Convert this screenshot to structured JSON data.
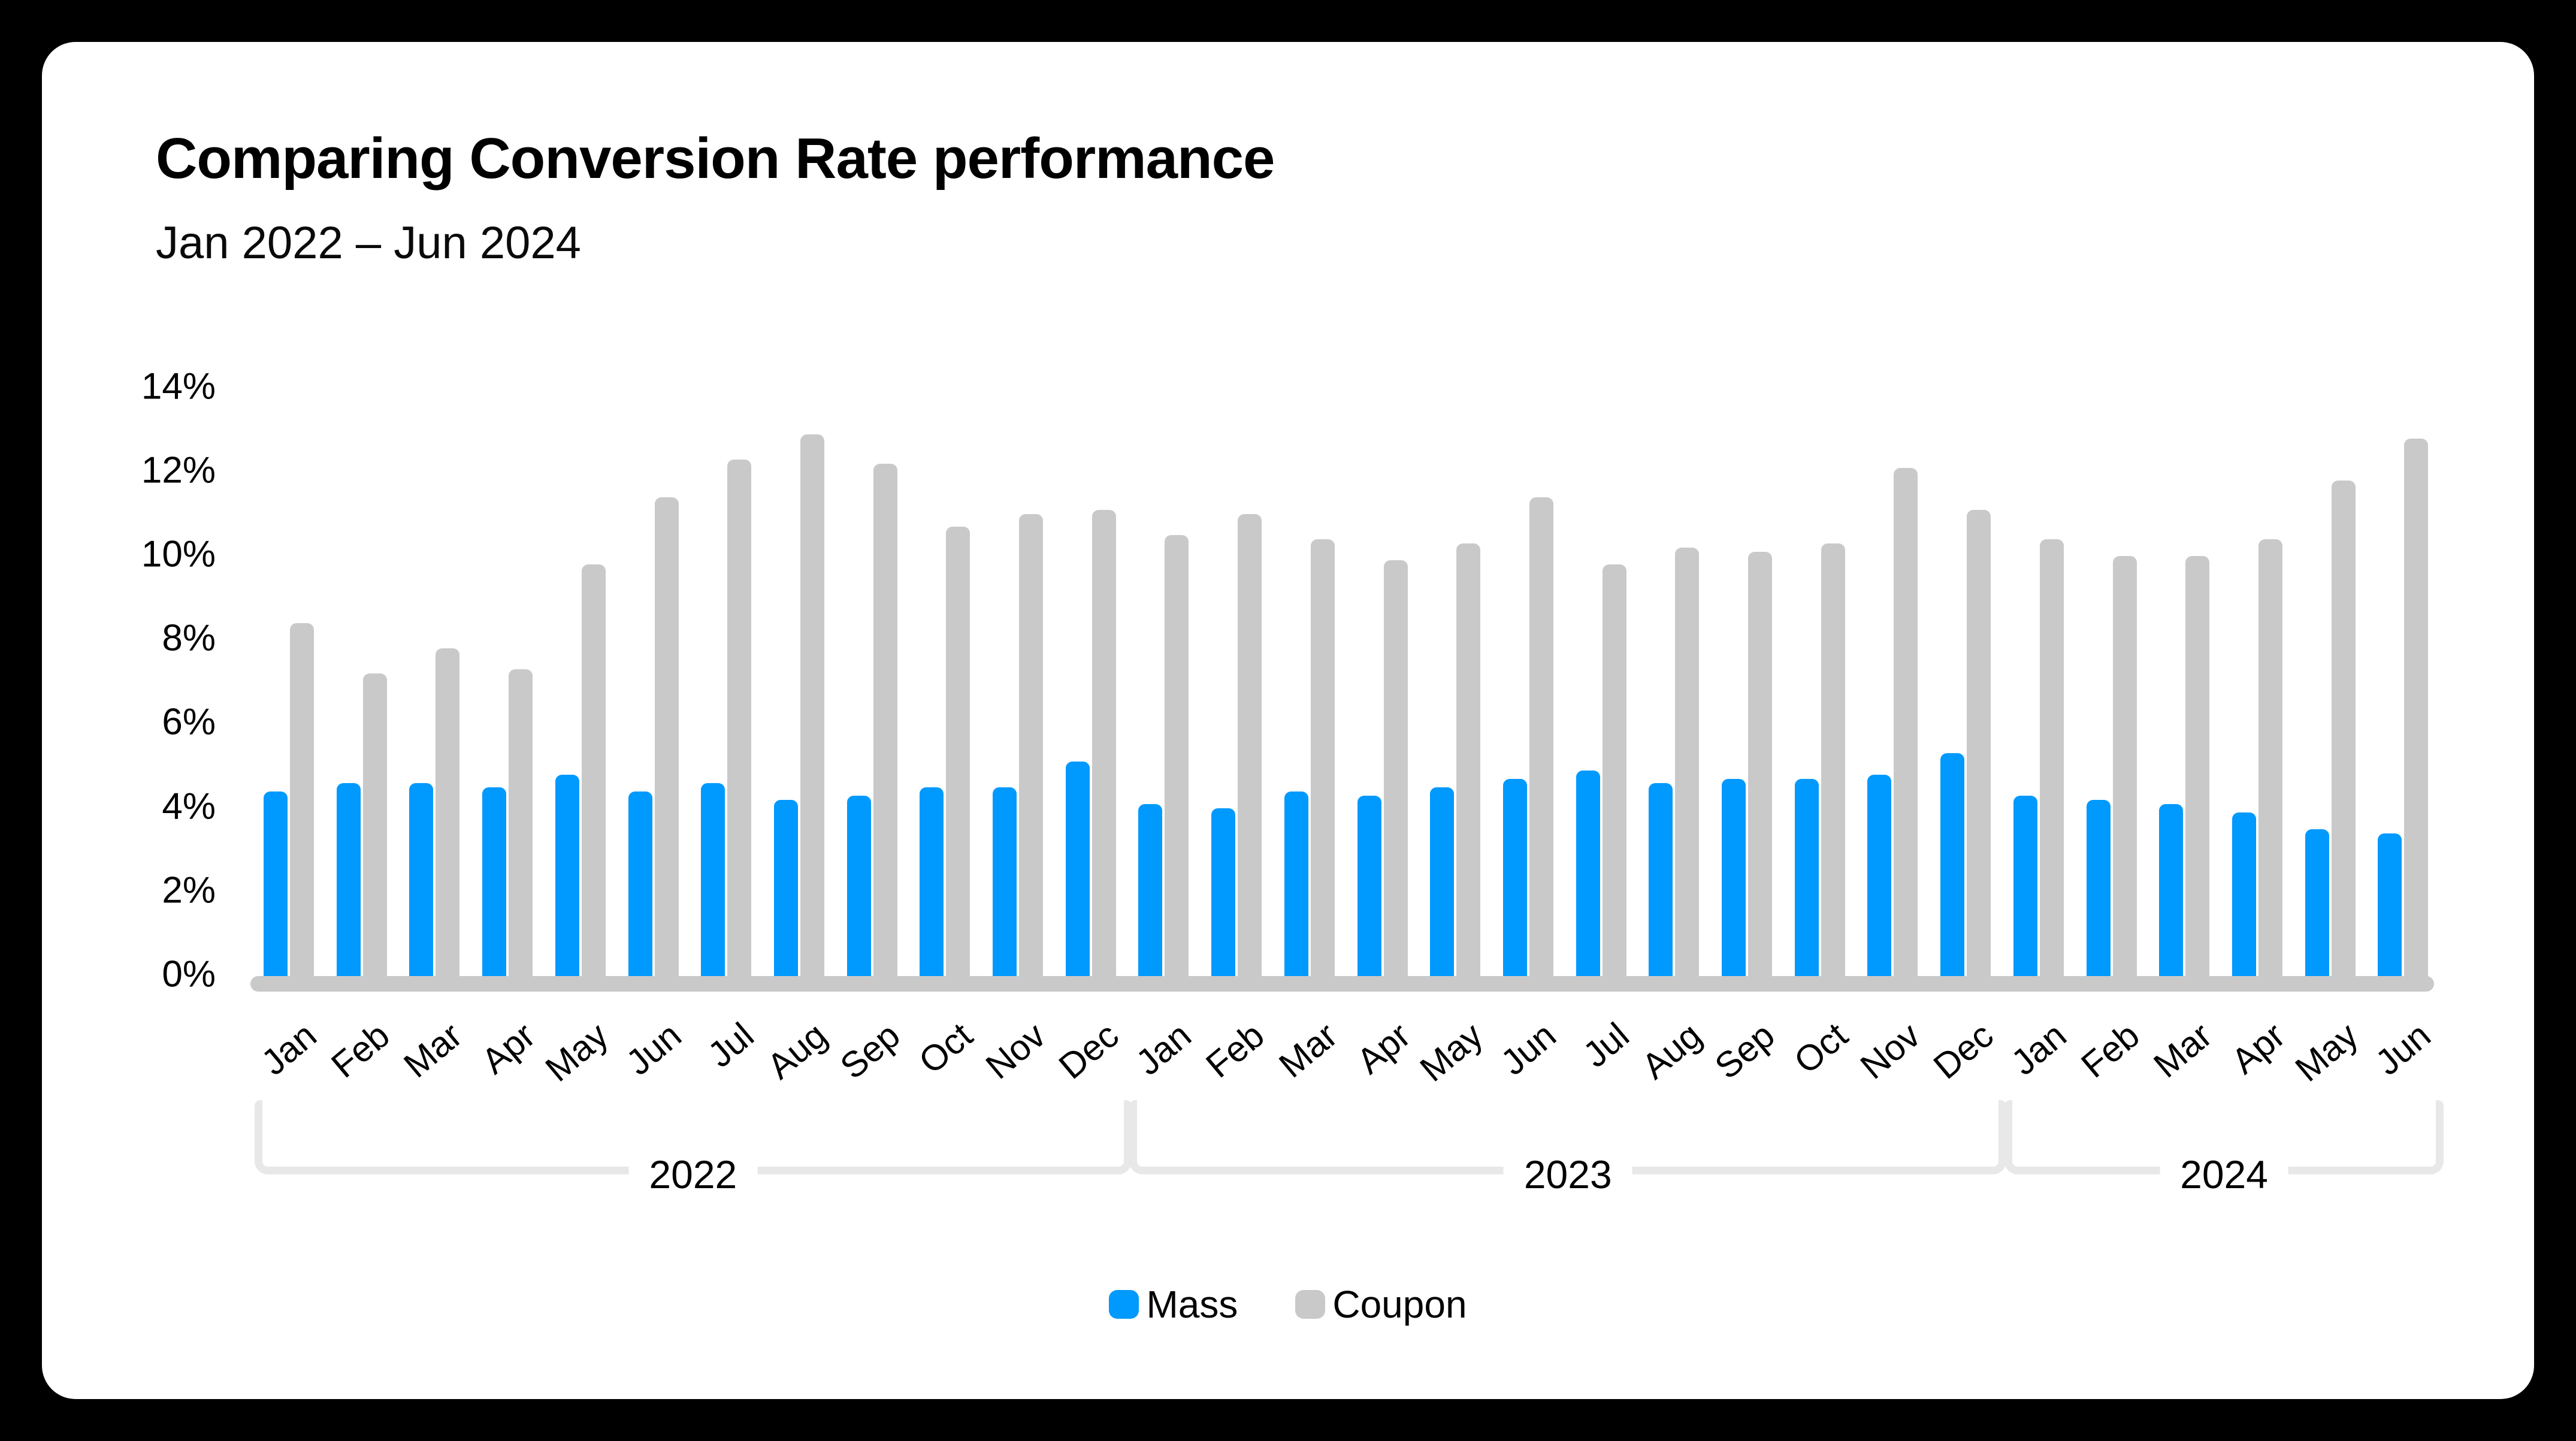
{
  "card": {
    "title": "Comparing Conversion Rate performance",
    "subtitle": "Jan 2022 – Jun 2024"
  },
  "colors": {
    "background": "#000000",
    "card": "#FFFFFF",
    "mass": "#0099FE",
    "coupon": "#C9C9C9",
    "bracket": "#E8E8E8",
    "text": "#000000"
  },
  "chart_data": {
    "type": "bar",
    "title": "Comparing Conversion Rate performance",
    "subtitle": "Jan 2022 – Jun 2024",
    "xlabel": "",
    "ylabel": "",
    "ylim": [
      0,
      14
    ],
    "ytick_step": 2,
    "ytick_suffix": "%",
    "grid": false,
    "legend_position": "bottom",
    "series_meta": [
      {
        "name": "Mass",
        "color": "#0099FE"
      },
      {
        "name": "Coupon",
        "color": "#C9C9C9"
      }
    ],
    "groups": [
      {
        "year": "2022",
        "months": [
          "Jan",
          "Feb",
          "Mar",
          "Apr",
          "May",
          "Jun",
          "Jul",
          "Aug",
          "Sep",
          "Oct",
          "Nov",
          "Dec"
        ],
        "series": {
          "Mass": [
            4.4,
            4.6,
            4.6,
            4.5,
            4.8,
            4.4,
            4.6,
            4.2,
            4.3,
            4.5,
            4.5,
            5.1
          ],
          "Coupon": [
            8.4,
            7.2,
            7.8,
            7.3,
            9.8,
            11.4,
            12.3,
            12.9,
            12.2,
            10.7,
            11.0,
            11.1
          ]
        }
      },
      {
        "year": "2023",
        "months": [
          "Jan",
          "Feb",
          "Mar",
          "Apr",
          "May",
          "Jun",
          "Jul",
          "Aug",
          "Sep",
          "Oct",
          "Nov",
          "Dec"
        ],
        "series": {
          "Mass": [
            4.1,
            4.0,
            4.4,
            4.3,
            4.5,
            4.7,
            4.9,
            4.6,
            4.7,
            4.7,
            4.8,
            5.3
          ],
          "Coupon": [
            10.5,
            11.0,
            10.4,
            9.9,
            10.3,
            11.4,
            9.8,
            10.2,
            10.1,
            10.3,
            12.1,
            11.1
          ]
        }
      },
      {
        "year": "2024",
        "months": [
          "Jan",
          "Feb",
          "Mar",
          "Apr",
          "May",
          "Jun"
        ],
        "series": {
          "Mass": [
            4.3,
            4.2,
            4.1,
            3.9,
            3.5,
            3.4
          ],
          "Coupon": [
            10.4,
            10.0,
            10.0,
            10.4,
            11.8,
            12.8
          ]
        }
      }
    ]
  },
  "legend": {
    "items": [
      {
        "label": "Mass",
        "color": "#0099FE"
      },
      {
        "label": "Coupon",
        "color": "#C9C9C9"
      }
    ]
  }
}
